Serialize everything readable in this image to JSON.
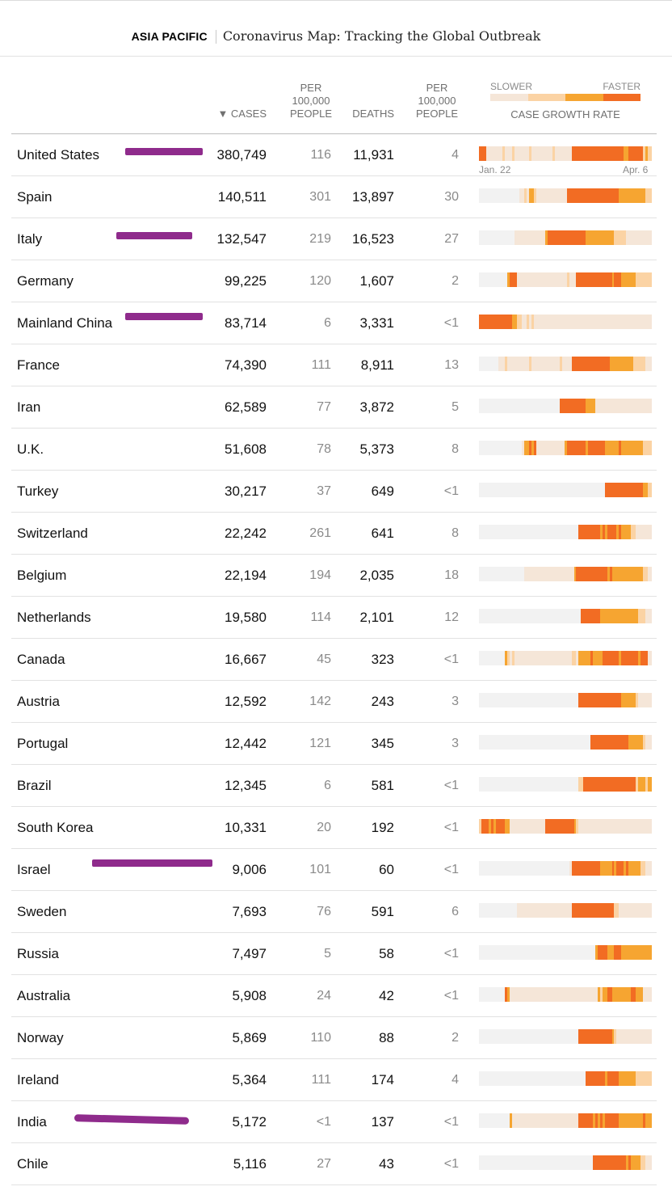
{
  "header": {
    "section": "ASIA PACIFIC",
    "headline": "Coronavirus Map: Tracking the Global Outbreak"
  },
  "columns": {
    "cases": "▼ CASES",
    "per100k_cases": [
      "PER",
      "100,000",
      "PEOPLE"
    ],
    "deaths": "DEATHS",
    "per100k_deaths": [
      "PER",
      "100,000",
      "PEOPLE"
    ]
  },
  "legend": {
    "slower": "SLOWER",
    "faster": "FASTER",
    "title": "CASE GROWTH RATE",
    "scale_colors": [
      "#f5e6d8",
      "#fbd3a4",
      "#f6a531",
      "#f26c23"
    ]
  },
  "timeline": {
    "start": "Jan. 22",
    "end": "Apr. 6"
  },
  "colors": {
    "level0": "#f2f2f2",
    "level1": "#f5e6d8",
    "level2": "#fbd3a4",
    "level3": "#f6a531",
    "level4": "#f26c23",
    "annotation": "#8f2b8c"
  },
  "rows": [
    {
      "country": "United States",
      "cases": "380,749",
      "cases_per_100k": "116",
      "deaths": "11,931",
      "deaths_per_100k": "4",
      "growth": "4441111111211121111112111111111211111114444444444444444444444334444442322"
    },
    {
      "country": "Spain",
      "cases": "140,511",
      "cases_per_100k": "301",
      "deaths": "13,897",
      "deaths_per_100k": "30",
      "growth": "0000000000000000011213321111111111111444444444444444444444433333333333222"
    },
    {
      "country": "Italy",
      "cases": "132,547",
      "cases_per_100k": "219",
      "deaths": "16,523",
      "deaths_per_100k": "27",
      "growth": "0000000000000001111111111111344444444444444443333333333332222211111111111"
    },
    {
      "country": "Germany",
      "cases": "99,225",
      "cases_per_100k": "120",
      "deaths": "1,607",
      "deaths_per_100k": "2",
      "growth": "0000000000003444111111111111111111111211144444444444444434443333332222222"
    },
    {
      "country": "Mainland China",
      "cases": "83,714",
      "cases_per_100k": "6",
      "deaths": "3,331",
      "deaths_per_100k": "<1",
      "growth": "4444444444444433221121211111111111111111111111111111111111111111111111111"
    },
    {
      "country": "France",
      "cases": "74,390",
      "cases_per_100k": "111",
      "deaths": "8,911",
      "deaths_per_100k": "13",
      "growth": "0000000011121111111112111111111111211114444444444444444333333333322222111"
    },
    {
      "country": "Iran",
      "cases": "62,589",
      "cases_per_100k": "77",
      "deaths": "3,872",
      "deaths_per_100k": "5",
      "growth": "0000000000000000000000000000000000444444444443333111111111111111111111111"
    },
    {
      "country": "U.K.",
      "cases": "51,608",
      "cases_per_100k": "78",
      "deaths": "5,373",
      "deaths_per_100k": "8",
      "growth": "0000000000000000001334341111111111113444444443444444433333343333333332222"
    },
    {
      "country": "Turkey",
      "cases": "30,217",
      "cases_per_100k": "37",
      "deaths": "649",
      "deaths_per_100k": "<1",
      "growth": "0000000000000000000000000000000000000000000000000000044444444444444443322"
    },
    {
      "country": "Switzerland",
      "cases": "22,242",
      "cases_per_100k": "261",
      "deaths": "641",
      "deaths_per_100k": "8",
      "growth": "0000000000000000000000000000000000000000004444444443434444343333221111111"
    },
    {
      "country": "Belgium",
      "cases": "22,194",
      "cases_per_100k": "194",
      "deaths": "2,035",
      "deaths_per_100k": "18",
      "growth": "0000000000000000000111111111111111111111344444444444443433333333333332211"
    },
    {
      "country": "Netherlands",
      "cases": "19,580",
      "cases_per_100k": "114",
      "deaths": "2,101",
      "deaths_per_100k": "12",
      "growth": "0000000000000000000000000000000000000000000444444443333333333333333222111"
    },
    {
      "country": "Canada",
      "cases": "16,667",
      "cases_per_100k": "45",
      "deaths": "323",
      "deaths_per_100k": "<1",
      "growth": "0000000000032121111111111111111111111112213333343333444444434444444344411"
    },
    {
      "country": "Austria",
      "cases": "12,592",
      "cases_per_100k": "142",
      "deaths": "243",
      "deaths_per_100k": "3",
      "growth": "0000000000000000000000000000000000000000004444444444444444443333332111111"
    },
    {
      "country": "Portugal",
      "cases": "12,442",
      "cases_per_100k": "121",
      "deaths": "345",
      "deaths_per_100k": "3",
      "growth": "0000000000000000000000000000000000000000000000044444444444444443333332111"
    },
    {
      "country": "Brazil",
      "cases": "12,345",
      "cases_per_100k": "6",
      "deaths": "581",
      "deaths_per_100k": "<1",
      "growth": "0000000000000000000000000000000000000000002244444444444444444444442333233"
    },
    {
      "country": "South Korea",
      "cases": "10,331",
      "cases_per_100k": "20",
      "deaths": "192",
      "deaths_per_100k": "<1",
      "growth": "2444343444433111111111111111444444444444321111111111111111111111111111111"
    },
    {
      "country": "Israel",
      "cases": "9,006",
      "cases_per_100k": "101",
      "deaths": "60",
      "deaths_per_100k": "<1",
      "growth": "0000000000000000000000000000000000000014444444444443333343444343333322111"
    },
    {
      "country": "Sweden",
      "cases": "7,693",
      "cases_per_100k": "76",
      "deaths": "591",
      "deaths_per_100k": "6",
      "growth": "0000000000000000111111111111111111111114444444444444444442211111111111111"
    },
    {
      "country": "Russia",
      "cases": "7,497",
      "cases_per_100k": "5",
      "deaths": "58",
      "deaths_per_100k": "<1",
      "growth": "0000000000000000000000000000000000000000000000000344443334443333333333333"
    },
    {
      "country": "Australia",
      "cases": "5,908",
      "cases_per_100k": "24",
      "deaths": "42",
      "deaths_per_100k": "<1",
      "growth": "0000000000043111111111111111111111111111111111111132334433333333443331111"
    },
    {
      "country": "Norway",
      "cases": "5,869",
      "cases_per_100k": "110",
      "deaths": "88",
      "deaths_per_100k": "2",
      "growth": "0000000000000000000000000000000000000000004444444444444432111111111111111"
    },
    {
      "country": "Ireland",
      "cases": "5,364",
      "cases_per_100k": "111",
      "deaths": "174",
      "deaths_per_100k": "4",
      "growth": "0000000000000000000000000000000000000000000004444444434444433333332222222"
    },
    {
      "country": "India",
      "cases": "5,172",
      "cases_per_100k": "<1",
      "deaths": "137",
      "deaths_per_100k": "<1",
      "growth": "0000000000000311111111111111111111111111114444443434344444433333333334333"
    },
    {
      "country": "Chile",
      "cases": "5,116",
      "cases_per_100k": "27",
      "deaths": "43",
      "deaths_per_100k": "<1",
      "growth": "0000000000000000000000000000000000000000000000004444444444444434333322111"
    }
  ]
}
